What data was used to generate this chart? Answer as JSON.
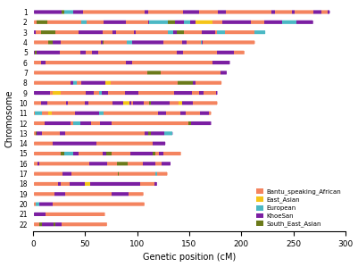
{
  "colors": {
    "Bantu_speaking_African": "#F4845F",
    "East_Asian": "#F5C518",
    "European": "#4BB8C4",
    "KhoeSan": "#7B1FA2",
    "South_East_Asian": "#6B7A1A"
  },
  "legend_labels": [
    "Bantu_speaking_African",
    "East_Asian",
    "European",
    "KhoeSan",
    "South_East_Asian"
  ],
  "xlabel": "Genetic position (cM)",
  "ylabel": "Chromosome",
  "xlim": [
    0,
    300
  ],
  "xticks": [
    0,
    50,
    100,
    150,
    200,
    250,
    300
  ],
  "chr_lengths": [
    286,
    270,
    224,
    214,
    204,
    190,
    187,
    182,
    178,
    178,
    172,
    172,
    135,
    128,
    143,
    133,
    130,
    120,
    107,
    108,
    70,
    72
  ],
  "bar_height": 0.55,
  "weights": [
    0.52,
    0.03,
    0.07,
    0.33,
    0.05
  ],
  "bg_color": "#FFFFFF"
}
